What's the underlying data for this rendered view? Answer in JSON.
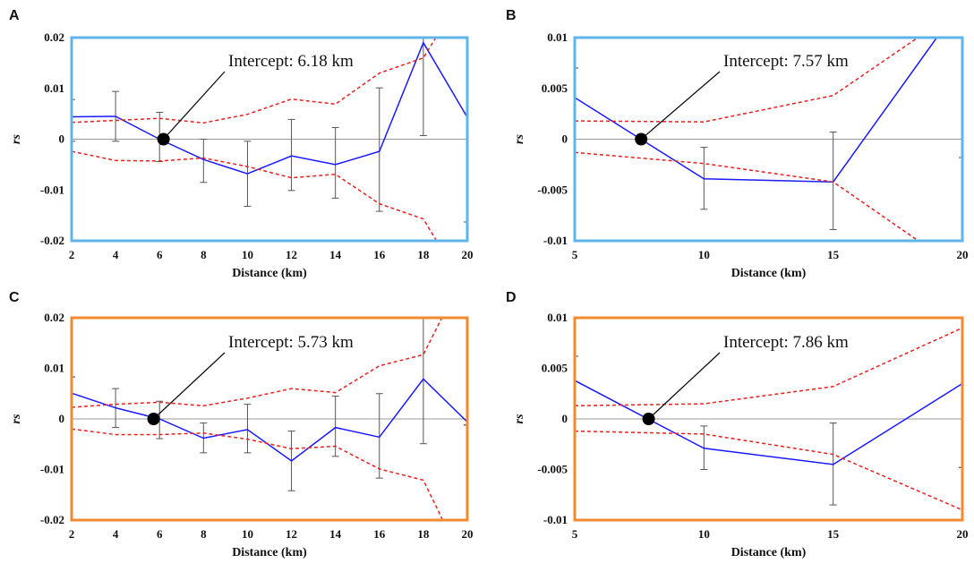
{
  "chart_data": [
    {
      "type": "line",
      "panel": "A",
      "frame_color": "#5fb4ea",
      "xlabel": "Distance (km)",
      "ylabel": "rs",
      "xlim": [
        2,
        20
      ],
      "ylim": [
        -0.02,
        0.02
      ],
      "xticks": [
        2,
        4,
        6,
        8,
        10,
        12,
        14,
        16,
        18,
        20
      ],
      "yticks": [
        -0.02,
        -0.01,
        0,
        0.01,
        0.02
      ],
      "ytick_labels": [
        "-0.02",
        "-0.01",
        "0",
        "0.01",
        "0.02"
      ],
      "x": [
        2,
        4,
        6,
        8,
        10,
        12,
        14,
        16,
        18,
        20
      ],
      "series": [
        {
          "role": "rs",
          "color": "#1a1aff",
          "values": [
            0.0044,
            0.0045,
            0.0,
            -0.004,
            -0.0068,
            -0.0033,
            -0.005,
            -0.0024,
            0.019,
            0.0043
          ]
        },
        {
          "role": "upper",
          "color": "#e8201e",
          "values": [
            0.0033,
            0.0037,
            0.0041,
            0.0032,
            0.0049,
            0.0079,
            0.0069,
            0.013,
            0.016,
            0.03
          ]
        },
        {
          "role": "lower",
          "color": "#e8201e",
          "values": [
            -0.0024,
            -0.0042,
            -0.0043,
            -0.0037,
            -0.0054,
            -0.0076,
            -0.0069,
            -0.0127,
            -0.0157,
            -0.03
          ]
        }
      ],
      "error_bars": [
        {
          "x": 2,
          "low": -0.0004,
          "high": 0.0078
        },
        {
          "x": 4,
          "low": -0.0004,
          "high": 0.0094
        },
        {
          "x": 6,
          "low": -0.0044,
          "high": 0.0053
        },
        {
          "x": 8,
          "low": -0.0085,
          "high": 0.0
        },
        {
          "x": 10,
          "low": -0.0132,
          "high": -0.0004
        },
        {
          "x": 12,
          "low": -0.0101,
          "high": 0.0039
        },
        {
          "x": 14,
          "low": -0.0116,
          "high": 0.0023
        },
        {
          "x": 16,
          "low": -0.0142,
          "high": 0.0101
        },
        {
          "x": 18,
          "low": 0.0007,
          "high": 0.02
        },
        {
          "x": 20,
          "low": -0.0163,
          "high": -0.0163
        }
      ],
      "intercept": {
        "x": 6.18,
        "label": "Intercept: 6.18 km"
      }
    },
    {
      "type": "line",
      "panel": "B",
      "frame_color": "#5fb4ea",
      "xlabel": "Distance (km)",
      "ylabel": "rs",
      "xlim": [
        5,
        20
      ],
      "ylim": [
        -0.01,
        0.01
      ],
      "xticks": [
        5,
        10,
        15,
        20
      ],
      "yticks": [
        -0.01,
        -0.005,
        0,
        0.005,
        0.01
      ],
      "ytick_labels": [
        "-0.01",
        "-0.005",
        "0",
        "0.005",
        "0.01"
      ],
      "x": [
        5,
        10,
        15,
        20
      ],
      "series": [
        {
          "role": "rs",
          "color": "#1a1aff",
          "values": [
            0.0041,
            -0.0039,
            -0.0042,
            0.0135
          ]
        },
        {
          "role": "upper",
          "color": "#e8201e",
          "values": [
            0.0018,
            0.0017,
            0.0043,
            0.013
          ]
        },
        {
          "role": "lower",
          "color": "#e8201e",
          "values": [
            -0.0013,
            -0.0024,
            -0.0042,
            -0.013
          ]
        }
      ],
      "error_bars": [
        {
          "x": 5,
          "low": 0.007,
          "high": 0.007
        },
        {
          "x": 10,
          "low": -0.0069,
          "high": -0.0008
        },
        {
          "x": 15,
          "low": -0.0089,
          "high": 0.0007
        },
        {
          "x": 20,
          "low": -0.0018,
          "high": 0.01
        }
      ],
      "intercept": {
        "x": 7.57,
        "label": "Intercept: 7.57 km"
      }
    },
    {
      "type": "line",
      "panel": "C",
      "frame_color": "#f28a30",
      "xlabel": "Distance (km)",
      "ylabel": "rs",
      "xlim": [
        2,
        20
      ],
      "ylim": [
        -0.02,
        0.02
      ],
      "xticks": [
        2,
        4,
        6,
        8,
        10,
        12,
        14,
        16,
        18,
        20
      ],
      "yticks": [
        -0.02,
        -0.01,
        0,
        0.01,
        0.02
      ],
      "ytick_labels": [
        "-0.02",
        "-0.01",
        "0",
        "0.01",
        "0.02"
      ],
      "x": [
        2,
        4,
        6,
        8,
        10,
        12,
        14,
        16,
        18,
        20
      ],
      "series": [
        {
          "role": "rs",
          "color": "#1a1aff",
          "values": [
            0.0051,
            0.0022,
            0.0,
            -0.0038,
            -0.0021,
            -0.0083,
            -0.0017,
            -0.0036,
            0.0079,
            -0.0006
          ]
        },
        {
          "role": "upper",
          "color": "#e8201e",
          "values": [
            0.0023,
            0.0029,
            0.0033,
            0.0026,
            0.0041,
            0.006,
            0.0052,
            0.0105,
            0.0127,
            0.03
          ]
        },
        {
          "role": "lower",
          "color": "#e8201e",
          "values": [
            -0.002,
            -0.0031,
            -0.0031,
            -0.0028,
            -0.004,
            -0.0059,
            -0.0054,
            -0.0099,
            -0.0121,
            -0.03
          ]
        }
      ],
      "error_bars": [
        {
          "x": 2,
          "low": 0.0083,
          "high": 0.0083
        },
        {
          "x": 4,
          "low": -0.0017,
          "high": 0.006
        },
        {
          "x": 6,
          "low": -0.0039,
          "high": 0.0035
        },
        {
          "x": 8,
          "low": -0.0067,
          "high": -0.0008
        },
        {
          "x": 10,
          "low": -0.0067,
          "high": 0.0029
        },
        {
          "x": 12,
          "low": -0.0142,
          "high": -0.0024
        },
        {
          "x": 14,
          "low": -0.0074,
          "high": 0.0045
        },
        {
          "x": 16,
          "low": -0.0117,
          "high": 0.005
        },
        {
          "x": 18,
          "low": -0.0049,
          "high": 0.02
        },
        {
          "x": 20,
          "low": -0.0012,
          "high": -0.0012
        }
      ],
      "intercept": {
        "x": 5.73,
        "label": "Intercept: 5.73 km"
      }
    },
    {
      "type": "line",
      "panel": "D",
      "frame_color": "#f28a30",
      "xlabel": "Distance (km)",
      "ylabel": "rs",
      "xlim": [
        5,
        20
      ],
      "ylim": [
        -0.01,
        0.01
      ],
      "xticks": [
        5,
        10,
        15,
        20
      ],
      "yticks": [
        -0.01,
        -0.005,
        0,
        0.005,
        0.01
      ],
      "ytick_labels": [
        "-0.01",
        "-0.005",
        "0",
        "0.005",
        "0.01"
      ],
      "x": [
        5,
        10,
        15,
        20
      ],
      "series": [
        {
          "role": "rs",
          "color": "#1a1aff",
          "values": [
            0.0038,
            -0.0029,
            -0.0045,
            0.0035
          ]
        },
        {
          "role": "upper",
          "color": "#e8201e",
          "values": [
            0.0013,
            0.0015,
            0.0032,
            0.009
          ]
        },
        {
          "role": "lower",
          "color": "#e8201e",
          "values": [
            -0.0012,
            -0.0015,
            -0.0035,
            -0.009
          ]
        }
      ],
      "error_bars": [
        {
          "x": 5,
          "low": 0.0062,
          "high": 0.0062
        },
        {
          "x": 10,
          "low": -0.005,
          "high": -0.0007
        },
        {
          "x": 15,
          "low": -0.0085,
          "high": -0.0004
        },
        {
          "x": 20,
          "low": -0.0048,
          "high": -0.0048
        }
      ],
      "intercept": {
        "x": 7.86,
        "label": "Intercept: 7.86 km"
      }
    }
  ]
}
